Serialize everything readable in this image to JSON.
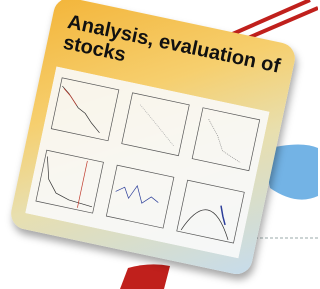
{
  "card": {
    "title": "Analysis, evaluation of stocks"
  }
}
